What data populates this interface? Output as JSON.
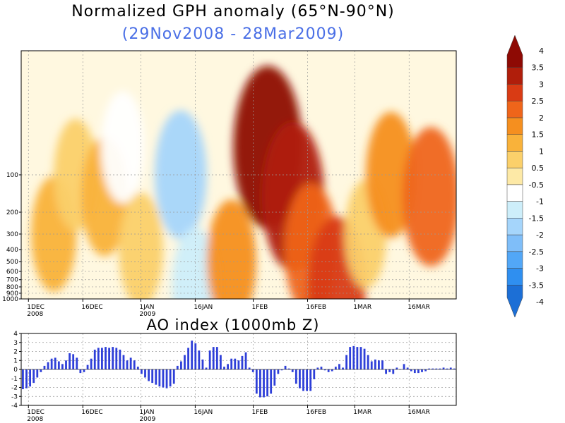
{
  "title": "Normalized GPH anomaly (65°N-90°N)",
  "subtitle": "(29Nov2008 - 28Mar2009)",
  "colors": {
    "subtitle": "#4a6fe6",
    "bars": "#2e3fd8",
    "levels": [
      "#1c6fd6",
      "#2f8ff0",
      "#52a7f7",
      "#7fbef9",
      "#a5d5fb",
      "#cdeefa",
      "#ffffff",
      "#fde9a6",
      "#fbd06a",
      "#f9b23a",
      "#f58f1f",
      "#ef651a",
      "#d93b14",
      "#b01e0b",
      "#8e0a04"
    ]
  },
  "chart_data": [
    {
      "type": "heatmap",
      "title": "Normalized GPH anomaly (65°N-90°N)",
      "subtitle": "(29Nov2008 - 28Mar2009)",
      "x_ticks": [
        {
          "label": "1DEC",
          "sub": "2008",
          "day": 2
        },
        {
          "label": "16DEC",
          "sub": "",
          "day": 17
        },
        {
          "label": "1JAN",
          "sub": "2009",
          "day": 33
        },
        {
          "label": "16JAN",
          "sub": "",
          "day": 48
        },
        {
          "label": "1FEB",
          "sub": "",
          "day": 64
        },
        {
          "label": "16FEB",
          "sub": "",
          "day": 79
        },
        {
          "label": "1MAR",
          "sub": "",
          "day": 92
        },
        {
          "label": "16MAR",
          "sub": "",
          "day": 107
        }
      ],
      "x_range_days": [
        0,
        120
      ],
      "y_scale": "log-pressure",
      "y_ticks": [
        100,
        200,
        300,
        400,
        500,
        600,
        700,
        800,
        900,
        1000
      ],
      "colorbar_levels": [
        -4,
        -3.5,
        -3,
        -2.5,
        -2,
        -1.5,
        -1,
        -0.5,
        0.5,
        1,
        1.5,
        2,
        2.5,
        3,
        3.5,
        4
      ],
      "grid": true,
      "regions": [
        {
          "center_day": 9,
          "center_p": 300,
          "value": 1.0
        },
        {
          "center_day": 15,
          "center_p": 100,
          "value": 0.8
        },
        {
          "center_day": 23,
          "center_p": 150,
          "value": 1.2
        },
        {
          "center_day": 28,
          "center_p": 60,
          "value": -0.8
        },
        {
          "center_day": 33,
          "center_p": 400,
          "value": 0.9
        },
        {
          "center_day": 44,
          "center_p": 100,
          "value": -1.8
        },
        {
          "center_day": 48,
          "center_p": 800,
          "value": -1.2
        },
        {
          "center_day": 58,
          "center_p": 500,
          "value": 1.5
        },
        {
          "center_day": 68,
          "center_p": 60,
          "value": 3.8
        },
        {
          "center_day": 75,
          "center_p": 150,
          "value": 3.0
        },
        {
          "center_day": 80,
          "center_p": 400,
          "value": 2.0
        },
        {
          "center_day": 87,
          "center_p": 800,
          "value": 2.5
        },
        {
          "center_day": 95,
          "center_p": 300,
          "value": 0.6
        },
        {
          "center_day": 102,
          "center_p": 100,
          "value": 1.6
        },
        {
          "center_day": 113,
          "center_p": 150,
          "value": 2.4
        }
      ]
    },
    {
      "type": "bar",
      "title": "AO index (1000mb Z)",
      "x_ticks": [
        {
          "label": "1DEC",
          "sub": "2008",
          "day": 2
        },
        {
          "label": "16DEC",
          "sub": "",
          "day": 17
        },
        {
          "label": "1JAN",
          "sub": "2009",
          "day": 33
        },
        {
          "label": "16JAN",
          "sub": "",
          "day": 48
        },
        {
          "label": "1FEB",
          "sub": "",
          "day": 64
        },
        {
          "label": "16FEB",
          "sub": "",
          "day": 79
        },
        {
          "label": "1MAR",
          "sub": "",
          "day": 92
        },
        {
          "label": "16MAR",
          "sub": "",
          "day": 107
        }
      ],
      "x_range_days": [
        0,
        120
      ],
      "ylim": [
        -4,
        4
      ],
      "y_ticks": [
        -4,
        -3,
        -2,
        -1,
        0,
        1,
        2,
        3,
        4
      ],
      "grid": true,
      "values": [
        -2.2,
        -2.1,
        -1.9,
        -1.5,
        -0.9,
        -0.3,
        0.4,
        0.8,
        1.2,
        1.3,
        0.9,
        0.6,
        1.0,
        1.8,
        1.7,
        1.3,
        -0.4,
        -0.3,
        0.5,
        1.2,
        2.2,
        2.4,
        2.4,
        2.5,
        2.4,
        2.5,
        2.4,
        2.2,
        1.6,
        1.0,
        1.3,
        1.0,
        0.3,
        -0.5,
        -0.9,
        -1.3,
        -1.5,
        -1.7,
        -1.9,
        -2.0,
        -2.1,
        -1.9,
        -1.6,
        0.4,
        0.9,
        1.6,
        2.4,
        3.2,
        2.9,
        2.1,
        1.1,
        0.2,
        2.1,
        2.5,
        2.5,
        1.6,
        0.3,
        0.6,
        1.2,
        1.2,
        1.0,
        1.5,
        1.9,
        0.2,
        -0.3,
        -2.7,
        -3.1,
        -3.1,
        -3.0,
        -2.7,
        -1.8,
        -0.5,
        -0.1,
        0.4,
        0.1,
        -0.3,
        -1.6,
        -2.1,
        -2.4,
        -2.4,
        -2.4,
        -1.1,
        0.2,
        0.3,
        -0.1,
        -0.3,
        -0.2,
        0.3,
        0.6,
        0.2,
        1.6,
        2.5,
        2.6,
        2.5,
        2.5,
        2.3,
        1.6,
        0.9,
        1.1,
        1.0,
        1.0,
        -0.5,
        -0.3,
        -0.5,
        0.2,
        0.0,
        0.6,
        0.2,
        -0.2,
        -0.4,
        -0.4,
        -0.3,
        -0.2,
        0.1,
        0.1,
        0.1,
        0.1,
        0.2,
        0.1,
        0.2,
        0.1
      ]
    }
  ]
}
